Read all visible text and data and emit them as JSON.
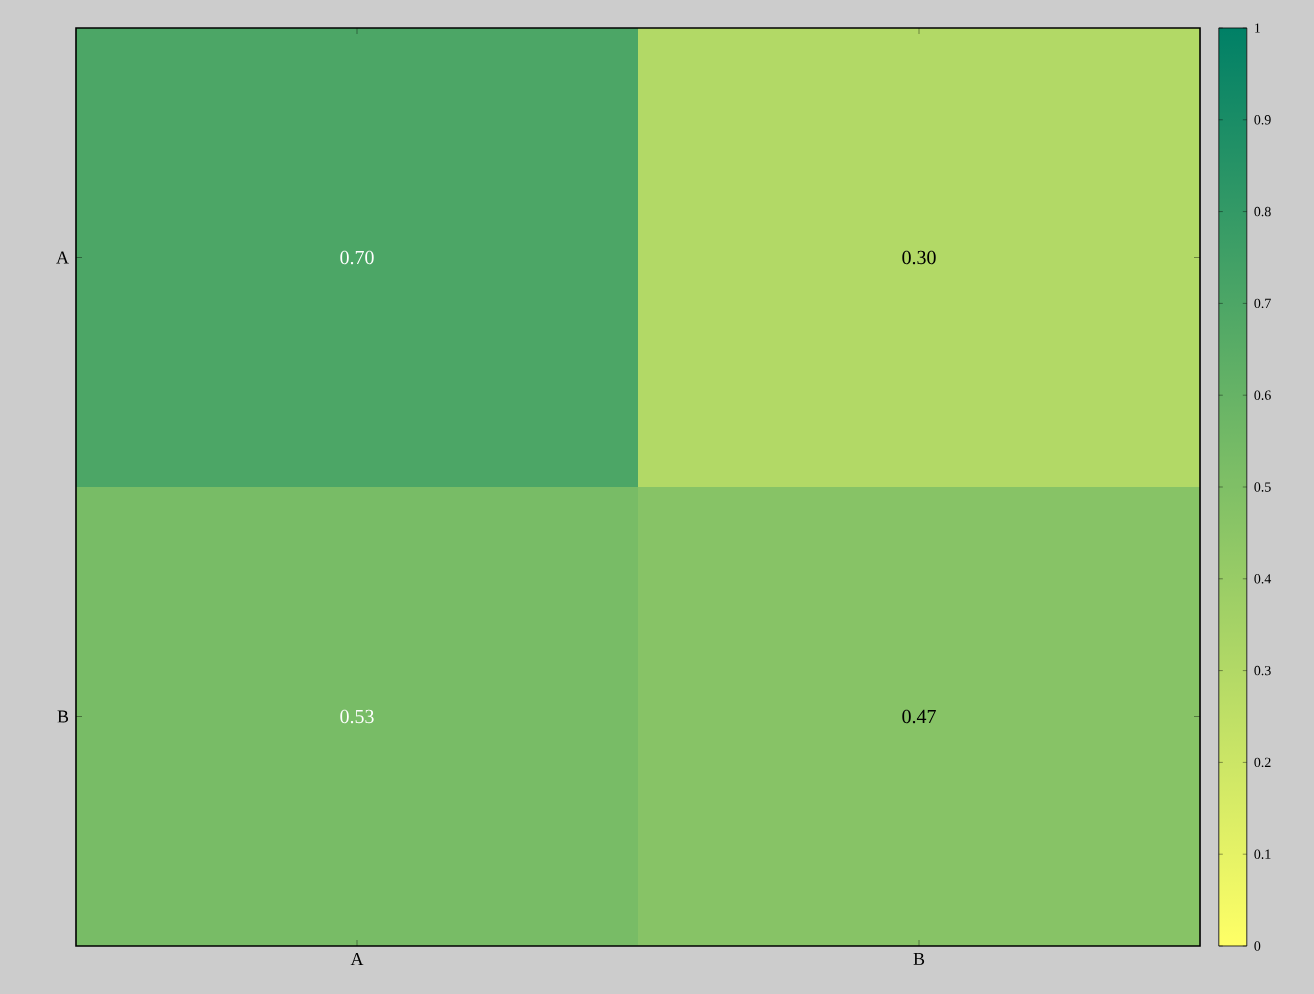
{
  "chart_data": {
    "type": "heatmap",
    "categories": [
      "A",
      "B"
    ],
    "y_categories": [
      "A",
      "B"
    ],
    "cells": [
      [
        0.7,
        0.3
      ],
      [
        0.53,
        0.47
      ]
    ],
    "cell_labels": [
      [
        "0.70",
        "0.30"
      ],
      [
        "0.53",
        "0.47"
      ]
    ],
    "clim": [
      0,
      1
    ],
    "cticks": [
      0,
      0.1,
      0.2,
      0.3,
      0.4,
      0.5,
      0.6,
      0.7,
      0.8,
      0.9,
      1
    ]
  }
}
